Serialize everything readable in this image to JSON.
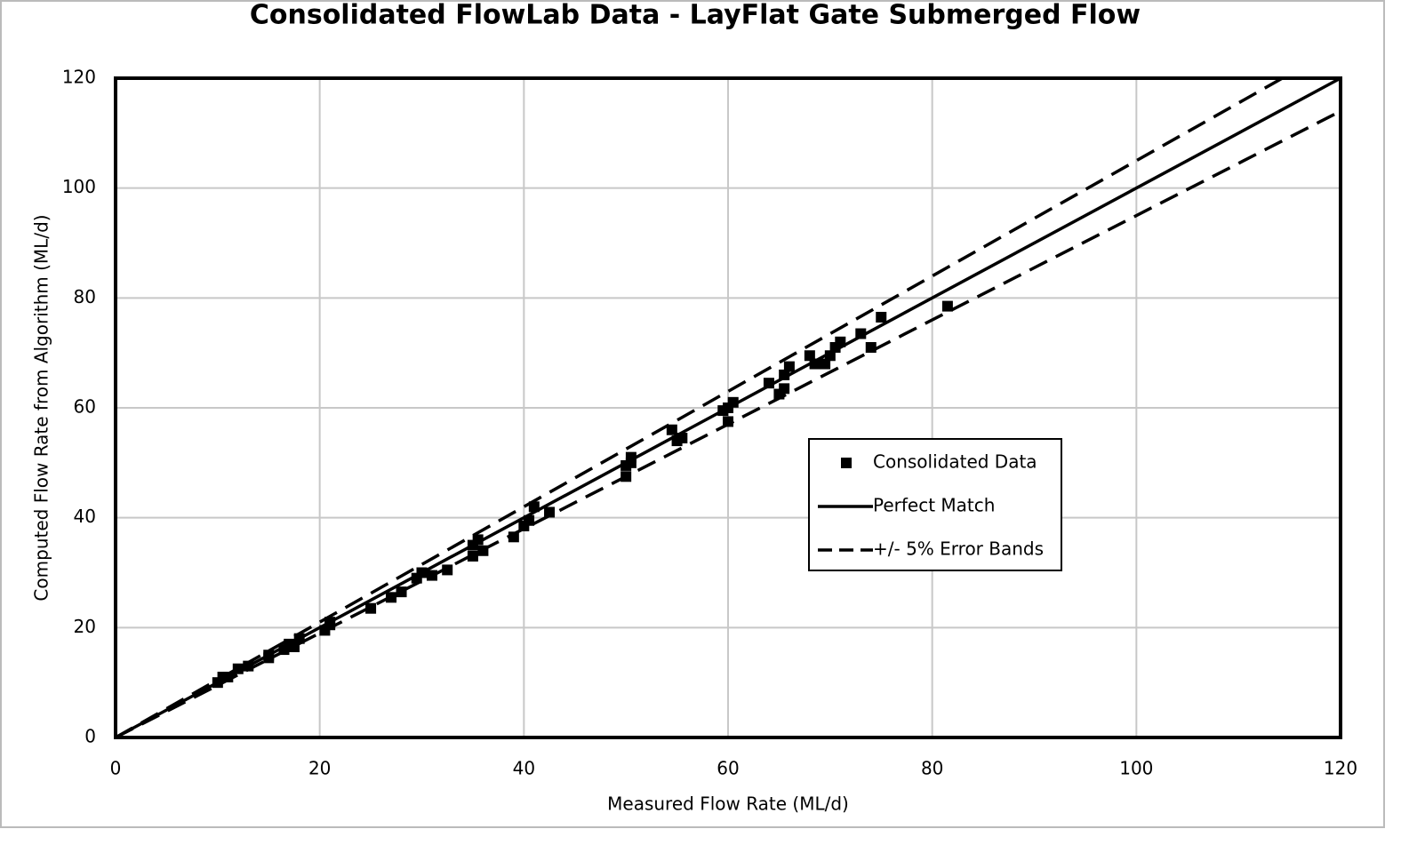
{
  "chart_data": {
    "type": "scatter",
    "title": "Consolidated FlowLab Data - LayFlat Gate Submerged Flow",
    "xlabel": "Measured Flow Rate (ML/d)",
    "ylabel": "Computed Flow Rate from Algorithm (ML/d)",
    "xlim": [
      0,
      120
    ],
    "ylim": [
      0,
      120
    ],
    "xticks": [
      0,
      20,
      40,
      60,
      80,
      100,
      120
    ],
    "yticks": [
      0,
      20,
      40,
      60,
      80,
      100,
      120
    ],
    "grid": true,
    "legend": "center right",
    "series": [
      {
        "name": "Consolidated Data",
        "type": "scatter",
        "color": "#000000",
        "x": [
          10,
          10.5,
          11,
          12,
          13,
          15,
          15,
          16.5,
          17,
          17.5,
          18,
          20.5,
          21,
          21,
          25,
          27,
          28,
          29.5,
          30,
          31,
          32.5,
          35,
          35,
          35.5,
          36,
          39,
          40,
          40.5,
          41,
          42.5,
          50,
          50,
          50.5,
          50.5,
          54.5,
          55,
          55.5,
          59.5,
          60,
          60,
          60.5,
          64,
          65,
          65.5,
          65.5,
          66,
          68,
          68.5,
          69.5,
          70,
          70.5,
          71,
          73,
          74,
          75,
          81.5
        ],
        "values": [
          10,
          11,
          11,
          12.5,
          13,
          14.5,
          15,
          16,
          17,
          16.5,
          18,
          19.5,
          20.5,
          21,
          23.5,
          25.5,
          26.5,
          29,
          30,
          29.5,
          30.5,
          33,
          35,
          36,
          34,
          36.5,
          38.5,
          39.5,
          42,
          41,
          47.5,
          49.5,
          50,
          51,
          56,
          54,
          54.5,
          59.5,
          57.5,
          60,
          61,
          64.5,
          62.5,
          63.5,
          66,
          67.5,
          69.5,
          68,
          68,
          69.5,
          71,
          72,
          73.5,
          71,
          76.5,
          78.5
        ]
      },
      {
        "name": "Perfect Match",
        "type": "line",
        "dash": false,
        "color": "#000000",
        "x": [
          0,
          120
        ],
        "values": [
          0,
          120
        ]
      },
      {
        "name": "+/- 5% Error Bands",
        "type": "line",
        "dash": true,
        "color": "#000000",
        "x": [
          0,
          114.3,
          null,
          0,
          120
        ],
        "values": [
          0,
          120,
          null,
          0,
          114
        ]
      }
    ]
  }
}
